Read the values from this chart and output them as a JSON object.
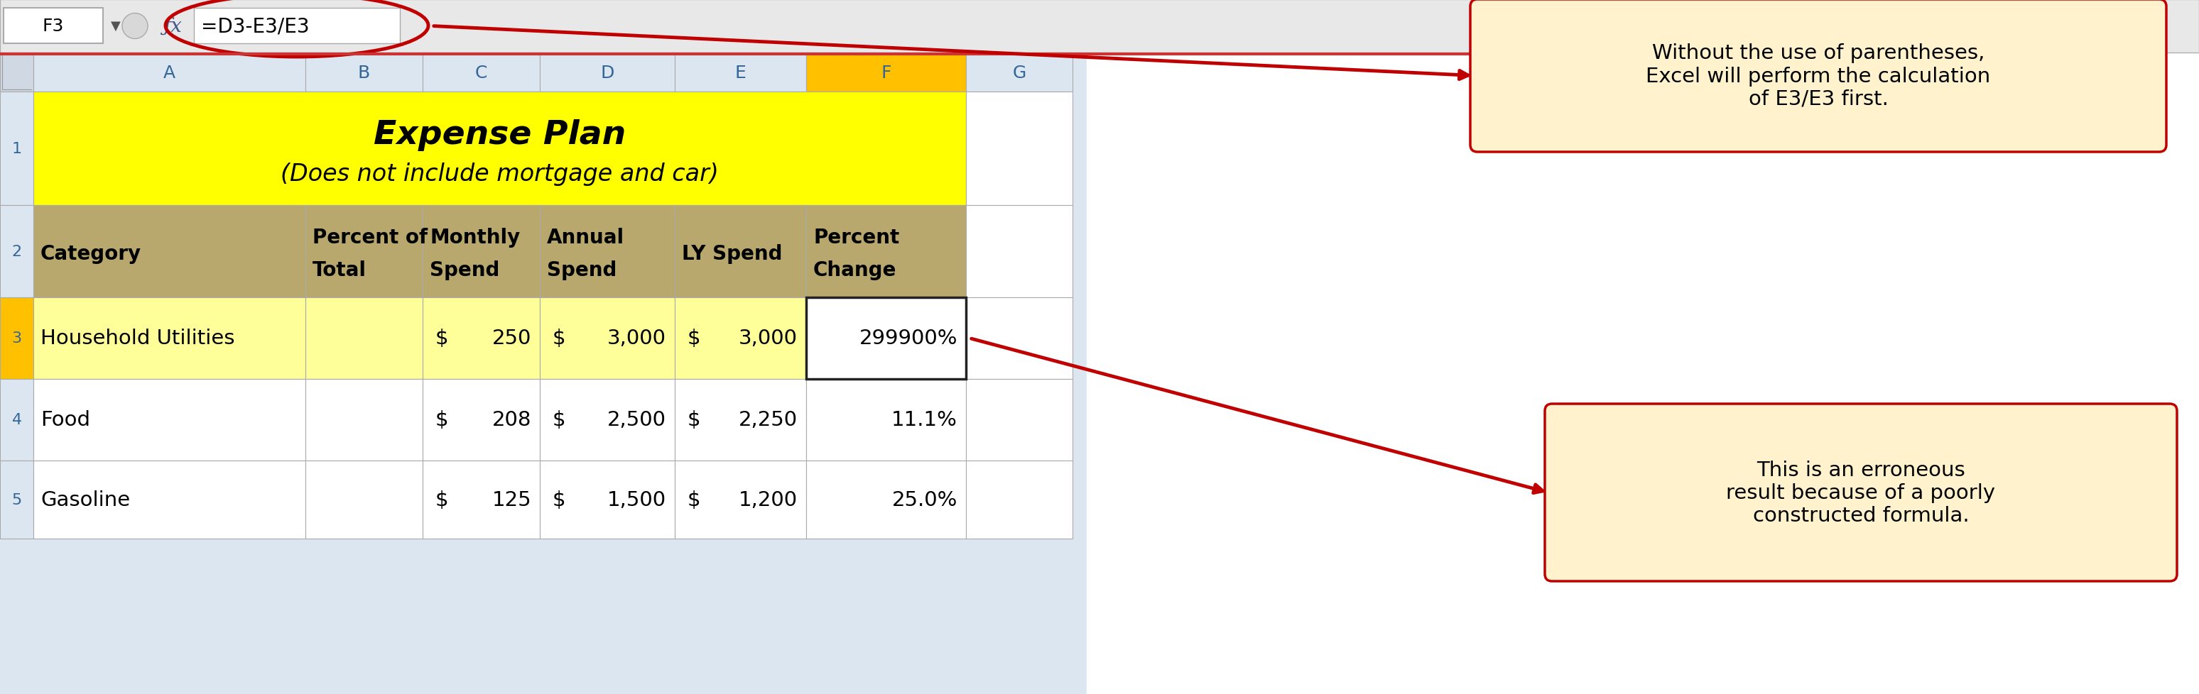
{
  "fig_width": 30.96,
  "fig_height": 9.79,
  "bg_color": "#ffffff",
  "formula_bar_text": "=D3-E3/E3",
  "cell_ref": "F3",
  "col_headers": [
    "A",
    "B",
    "C",
    "D",
    "E",
    "F",
    "G"
  ],
  "title_row_text1": "Expense Plan",
  "title_row_text2": "(Does not include mortgage and car)",
  "title_bg": "#ffff00",
  "header_bg": "#b8a86e",
  "row3_bg": "#ffff99",
  "row3_num_bg": "#ffc000",
  "col_header_selected_bg": "#ffc000",
  "spreadsheet_bg": "#dce6f1",
  "rows": [
    [
      "Household Utilities",
      "",
      "250",
      "3,000",
      "3,000",
      "299900%"
    ],
    [
      "Food",
      "",
      "208",
      "2,500",
      "2,250",
      "11.1%"
    ],
    [
      "Gasoline",
      "",
      "125",
      "1,500",
      "1,200",
      "25.0%"
    ]
  ],
  "callout1_text": "Without the use of parentheses,\nExcel will perform the calculation\nof E3/E3 first.",
  "callout2_text": "This is an erroneous\nresult because of a poorly\nconstructed formula.",
  "callout1_bg": "#fff2cc",
  "callout2_bg": "#fff2cc",
  "callout_border": "#c00000",
  "arrow_color": "#c00000"
}
